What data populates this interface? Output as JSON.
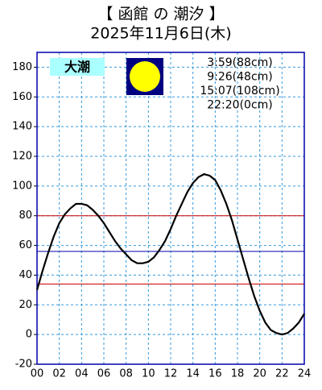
{
  "chart_data": {
    "type": "line",
    "title": "【 函館 の 潮汐 】",
    "subtitle": "2025年11月6日(木)",
    "tide_label": "大潮",
    "annotations": [
      "3:59(88cm)",
      "9:26(48cm)",
      "15:07(108cm)",
      "22:20(0cm)"
    ],
    "x": [
      0,
      0.5,
      1,
      1.5,
      2,
      2.5,
      3,
      3.5,
      4,
      4.5,
      5,
      5.5,
      6,
      6.5,
      7,
      7.5,
      8,
      8.5,
      9,
      9.5,
      10,
      10.5,
      11,
      11.5,
      12,
      12.5,
      13,
      13.5,
      14,
      14.5,
      15,
      15.5,
      16,
      16.5,
      17,
      17.5,
      18,
      18.5,
      19,
      19.5,
      20,
      20.5,
      21,
      21.5,
      22,
      22.5,
      23,
      23.5,
      24
    ],
    "series": [
      {
        "color": "#000000",
        "values": [
          30,
          43,
          55,
          66,
          75,
          81,
          85,
          88,
          88,
          87,
          84,
          80,
          75,
          69,
          63,
          58,
          54,
          50,
          48,
          48,
          49,
          52,
          57,
          63,
          71,
          80,
          88,
          96,
          102,
          106,
          108,
          107,
          104,
          97,
          88,
          77,
          64,
          51,
          38,
          26,
          16,
          8,
          3,
          1,
          0,
          1,
          4,
          8,
          14
        ]
      }
    ],
    "reference_lines": [
      {
        "value": 80,
        "color": "#cc0000"
      },
      {
        "value": 56,
        "color": "#0000aa"
      },
      {
        "value": 34,
        "color": "#cc0000"
      }
    ],
    "xlim": [
      0,
      24
    ],
    "xticks": [
      {
        "value": 0,
        "label": "00"
      },
      {
        "value": 2,
        "label": "02"
      },
      {
        "value": 4,
        "label": "04"
      },
      {
        "value": 6,
        "label": "06"
      },
      {
        "value": 8,
        "label": "08"
      },
      {
        "value": 10,
        "label": "10"
      },
      {
        "value": 12,
        "label": "12"
      },
      {
        "value": 14,
        "label": "14"
      },
      {
        "value": 16,
        "label": "16"
      },
      {
        "value": 18,
        "label": "18"
      },
      {
        "value": 20,
        "label": "20"
      },
      {
        "value": 22,
        "label": "22"
      },
      {
        "value": 24,
        "label": "24"
      }
    ],
    "ylim": [
      -20,
      190
    ],
    "yticks": [
      -20,
      0,
      20,
      40,
      60,
      80,
      100,
      120,
      140,
      160,
      180
    ],
    "grid": true
  }
}
